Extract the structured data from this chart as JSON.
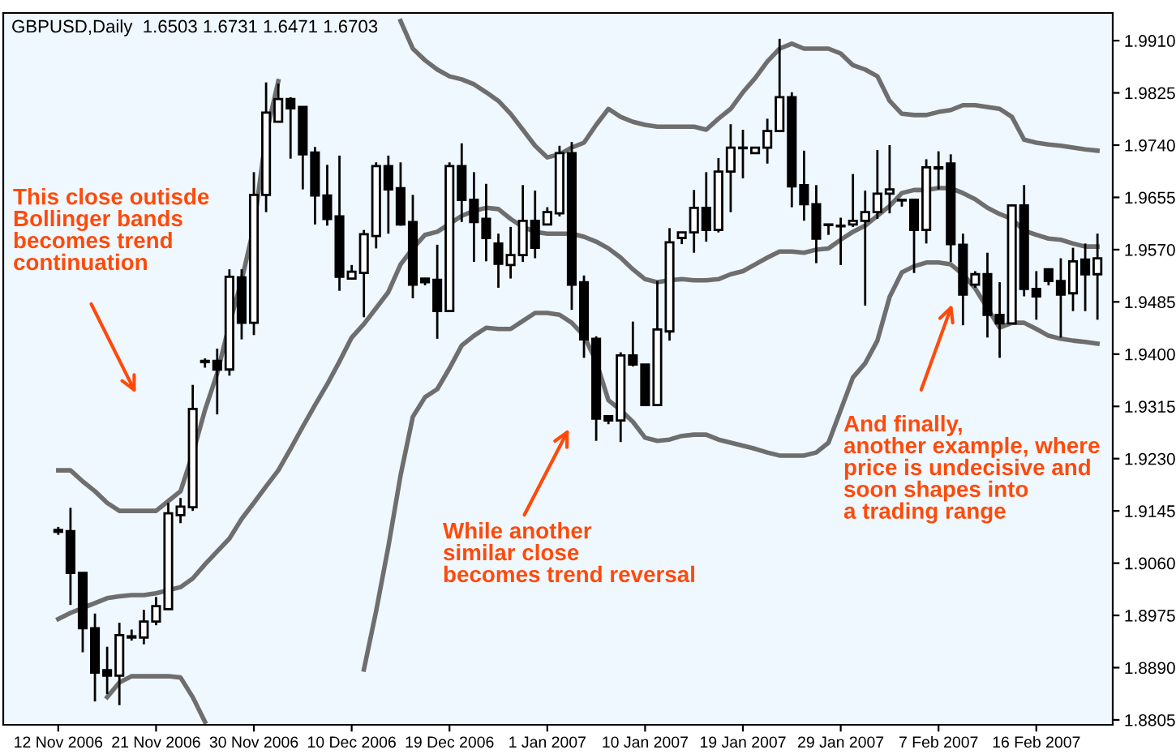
{
  "chart_data": {
    "type": "candlestick",
    "title": "GBPUSD,Daily  1.6503 1.6731 1.6471 1.6703",
    "categories": [
      "12 Nov 2006",
      null,
      null,
      null,
      null,
      null,
      null,
      null,
      "21 Nov 2006",
      null,
      null,
      null,
      null,
      null,
      null,
      null,
      "30 Nov 2006",
      null,
      null,
      null,
      null,
      null,
      null,
      null,
      "10 Dec 2006",
      null,
      null,
      null,
      null,
      null,
      null,
      null,
      "19 Dec 2006",
      null,
      null,
      null,
      null,
      null,
      null,
      null,
      "1 Jan 2007",
      null,
      null,
      null,
      null,
      null,
      null,
      null,
      "10 Jan 2007",
      null,
      null,
      null,
      null,
      null,
      null,
      null,
      "19 Jan 2007",
      null,
      null,
      null,
      null,
      null,
      null,
      null,
      "29 Jan 2007",
      null,
      null,
      null,
      null,
      null,
      null,
      null,
      "7 Feb 2007",
      null,
      null,
      null,
      null,
      null,
      null,
      null,
      "16 Feb 2007",
      null,
      null,
      null,
      null,
      null
    ],
    "ohlc": [
      [
        1.9114,
        1.9119,
        1.9106,
        1.9111
      ],
      [
        1.9112,
        1.915,
        1.8992,
        1.9044
      ],
      [
        1.9044,
        1.9045,
        1.8915,
        1.8954
      ],
      [
        1.8954,
        1.8978,
        1.8835,
        1.8882
      ],
      [
        1.8886,
        1.8924,
        1.8847,
        1.8877
      ],
      [
        1.8877,
        1.8963,
        1.8829,
        1.8943
      ],
      [
        1.8939,
        1.8952,
        1.8934,
        1.8941
      ],
      [
        1.8939,
        1.8984,
        1.8928,
        1.8965
      ],
      [
        1.8965,
        1.9005,
        1.8959,
        1.899
      ],
      [
        1.8985,
        1.9158,
        1.8985,
        1.9141
      ],
      [
        1.9138,
        1.9166,
        1.9125,
        1.9152
      ],
      [
        1.9151,
        1.935,
        1.9145,
        1.9311
      ],
      [
        1.9387,
        1.9393,
        1.9378,
        1.9389
      ],
      [
        1.9389,
        1.9409,
        1.9302,
        1.9375
      ],
      [
        1.9375,
        1.9538,
        1.9365,
        1.9526
      ],
      [
        1.9525,
        1.9538,
        1.9424,
        1.9451
      ],
      [
        1.9451,
        1.9696,
        1.9431,
        1.9659
      ],
      [
        1.9659,
        1.9842,
        1.9631,
        1.9793
      ],
      [
        1.9778,
        1.984,
        1.9778,
        1.9815
      ],
      [
        1.9815,
        1.9818,
        1.9718,
        1.98
      ],
      [
        1.9802,
        1.9802,
        1.9668,
        1.9725
      ],
      [
        1.9728,
        1.9737,
        1.9611,
        1.9658
      ],
      [
        1.9658,
        1.9708,
        1.9609,
        1.962
      ],
      [
        1.9624,
        1.9723,
        1.9503,
        1.9526
      ],
      [
        1.9523,
        1.9545,
        1.9523,
        1.9534
      ],
      [
        1.9532,
        1.9602,
        1.946,
        1.9595
      ],
      [
        1.9592,
        1.9712,
        1.9572,
        1.9706
      ],
      [
        1.9706,
        1.9723,
        1.9596,
        1.9668
      ],
      [
        1.967,
        1.9712,
        1.9609,
        1.9611
      ],
      [
        1.9615,
        1.9659,
        1.9491,
        1.9513
      ],
      [
        1.9523,
        1.9523,
        1.9512,
        1.9517
      ],
      [
        1.9521,
        1.9578,
        1.9425,
        1.947
      ],
      [
        1.947,
        1.9712,
        1.947,
        1.9706
      ],
      [
        1.9706,
        1.9743,
        1.9615,
        1.9651
      ],
      [
        1.9651,
        1.9696,
        1.955,
        1.9615
      ],
      [
        1.962,
        1.9677,
        1.9551,
        1.9589
      ],
      [
        1.958,
        1.9596,
        1.9508,
        1.9547
      ],
      [
        1.9545,
        1.9607,
        1.9523,
        1.9561
      ],
      [
        1.9561,
        1.9675,
        1.955,
        1.9617
      ],
      [
        1.9617,
        1.9666,
        1.9556,
        1.9573
      ],
      [
        1.9611,
        1.9639,
        1.9611,
        1.9631
      ],
      [
        1.9629,
        1.9739,
        1.9624,
        1.9727
      ],
      [
        1.9727,
        1.9745,
        1.9472,
        1.9513
      ],
      [
        1.9517,
        1.9528,
        1.9394,
        1.9424
      ],
      [
        1.9425,
        1.9429,
        1.9259,
        1.9295
      ],
      [
        1.9299,
        1.9299,
        1.9286,
        1.9292
      ],
      [
        1.9292,
        1.9403,
        1.9257,
        1.9398
      ],
      [
        1.9398,
        1.9453,
        1.938,
        1.9383
      ],
      [
        1.9383,
        1.9383,
        1.9317,
        1.9317
      ],
      [
        1.9317,
        1.9519,
        1.9317,
        1.944
      ],
      [
        1.9437,
        1.9605,
        1.9422,
        1.9582
      ],
      [
        1.9589,
        1.9598,
        1.9579,
        1.9598
      ],
      [
        1.9598,
        1.9667,
        1.9565,
        1.9638
      ],
      [
        1.9638,
        1.9696,
        1.9583,
        1.9602
      ],
      [
        1.9602,
        1.9719,
        1.9598,
        1.9697
      ],
      [
        1.9697,
        1.9774,
        1.9631,
        1.9736
      ],
      [
        1.9736,
        1.9765,
        1.9686,
        1.9735
      ],
      [
        1.9727,
        1.9736,
        1.9727,
        1.9736
      ],
      [
        1.9736,
        1.9783,
        1.971,
        1.9763
      ],
      [
        1.9763,
        1.9913,
        1.9763,
        1.9818
      ],
      [
        1.9818,
        1.9826,
        1.9639,
        1.9673
      ],
      [
        1.9675,
        1.9731,
        1.9617,
        1.9644
      ],
      [
        1.9644,
        1.9675,
        1.9548,
        1.9588
      ],
      [
        1.961,
        1.9612,
        1.9594,
        1.9611
      ],
      [
        1.9608,
        1.9622,
        1.9545,
        1.9609
      ],
      [
        1.9611,
        1.9693,
        1.9607,
        1.9617
      ],
      [
        1.9617,
        1.9666,
        1.9479,
        1.9631
      ],
      [
        1.9631,
        1.9732,
        1.962,
        1.9661
      ],
      [
        1.9661,
        1.974,
        1.9629,
        1.9668
      ],
      [
        1.965,
        1.9652,
        1.964,
        1.9651
      ],
      [
        1.9651,
        1.9651,
        1.9532,
        1.9602
      ],
      [
        1.9602,
        1.9717,
        1.958,
        1.9704
      ],
      [
        1.9702,
        1.973,
        1.9668,
        1.9704
      ],
      [
        1.971,
        1.9725,
        1.955,
        1.9579
      ],
      [
        1.9578,
        1.9596,
        1.9447,
        1.9497
      ],
      [
        1.9513,
        1.9535,
        1.9508,
        1.953
      ],
      [
        1.953,
        1.9565,
        1.9427,
        1.9464
      ],
      [
        1.9464,
        1.9517,
        1.9394,
        1.945
      ],
      [
        1.945,
        1.9642,
        1.945,
        1.9642
      ],
      [
        1.9642,
        1.9675,
        1.9494,
        1.9506
      ],
      [
        1.9506,
        1.9535,
        1.9456,
        1.9494
      ],
      [
        1.9538,
        1.9538,
        1.9512,
        1.9519
      ],
      [
        1.9519,
        1.9556,
        1.9427,
        1.9497
      ],
      [
        1.9499,
        1.9573,
        1.947,
        1.9551
      ],
      [
        1.9554,
        1.958,
        1.947,
        1.953
      ],
      [
        1.953,
        1.9596,
        1.9456,
        1.9556
      ]
    ],
    "series": [
      {
        "type": "line",
        "color": "#6e6e6e",
        "values": [
          1.9211,
          1.9211,
          1.9193,
          1.9177,
          1.9158,
          1.9145,
          1.9145,
          1.9145,
          1.9145,
          1.9161,
          1.9177,
          1.9238,
          1.9309,
          1.9369,
          1.9449,
          1.952,
          1.9607,
          1.9757,
          1.9844,
          null,
          null,
          null,
          null,
          null,
          null,
          null,
          null,
          null,
          1.9942,
          1.9897,
          1.9878,
          1.9863,
          1.9852,
          1.9847,
          1.9839,
          1.9826,
          1.9812,
          1.9791,
          1.9765,
          1.9739,
          1.972,
          1.9725,
          1.9736,
          1.9744,
          1.9773,
          1.9799,
          1.9786,
          1.9778,
          1.9773,
          1.977,
          1.977,
          1.977,
          1.977,
          1.9765,
          1.9783,
          1.9799,
          1.9826,
          1.9849,
          1.9876,
          1.9897,
          1.9905,
          1.9897,
          1.9897,
          1.9897,
          1.9889,
          1.987,
          1.9863,
          1.9852,
          1.9812,
          1.9791,
          1.9789,
          1.9789,
          1.9794,
          1.9797,
          1.9805,
          1.9805,
          1.9802,
          1.9799,
          1.9786,
          1.9749,
          1.9744,
          1.9741,
          1.9739,
          1.9736,
          1.9733,
          1.9731
        ]
      },
      {
        "type": "line",
        "color": "#6e6e6e",
        "values": [
          1.8969,
          1.8979,
          1.8987,
          1.8995,
          1.9003,
          1.9006,
          1.9008,
          1.9008,
          1.9011,
          1.9016,
          1.9021,
          1.9035,
          1.9058,
          1.9079,
          1.91,
          1.9132,
          1.9158,
          1.9185,
          1.9211,
          1.9246,
          1.9282,
          1.9317,
          1.9351,
          1.9388,
          1.9427,
          1.9449,
          1.9475,
          1.9501,
          1.9546,
          1.9572,
          1.9594,
          1.9599,
          1.9612,
          1.9625,
          1.9633,
          1.9638,
          1.9636,
          1.962,
          1.9607,
          1.9599,
          1.9596,
          1.9596,
          1.9596,
          1.9591,
          1.9583,
          1.9572,
          1.9557,
          1.9538,
          1.9522,
          1.9517,
          1.952,
          1.9522,
          1.952,
          1.952,
          1.9522,
          1.953,
          1.9535,
          1.9546,
          1.9557,
          1.9567,
          1.9567,
          1.9565,
          1.957,
          1.9572,
          1.9586,
          1.9599,
          1.9609,
          1.9625,
          1.9641,
          1.9662,
          1.9667,
          1.9667,
          1.967,
          1.967,
          1.9662,
          1.9652,
          1.9638,
          1.9628,
          1.962,
          1.9601,
          1.9594,
          1.9588,
          1.9586,
          1.958,
          1.9575,
          1.9575
        ]
      },
      {
        "type": "line",
        "color": "#6e6e6e",
        "values": [
          null,
          null,
          null,
          null,
          1.8842,
          1.8866,
          1.8876,
          1.8876,
          1.8876,
          1.8876,
          1.8874,
          1.8842,
          1.8802,
          null,
          null,
          null,
          null,
          null,
          null,
          null,
          null,
          null,
          null,
          null,
          null,
          1.8887,
          1.8982,
          1.9087,
          1.9203,
          1.9298,
          1.933,
          1.9343,
          1.9377,
          1.9414,
          1.943,
          1.9443,
          1.9441,
          1.9441,
          1.9454,
          1.9467,
          1.9467,
          1.9464,
          1.9451,
          1.943,
          1.9388,
          1.9325,
          1.9309,
          1.929,
          1.9264,
          1.9259,
          1.9261,
          1.9267,
          1.9269,
          1.9269,
          1.9261,
          1.9256,
          1.9251,
          1.9246,
          1.924,
          1.9235,
          1.9235,
          1.9235,
          1.924,
          1.9256,
          1.9309,
          1.9362,
          1.9385,
          1.9422,
          1.9493,
          1.9533,
          1.9543,
          1.9549,
          1.9549,
          1.9546,
          1.953,
          1.9507,
          1.9475,
          1.9443,
          1.9451,
          1.9451,
          1.9441,
          1.943,
          1.9425,
          1.9422,
          1.942,
          1.9417
        ]
      }
    ],
    "ylim": [
      1.8797,
      1.9955
    ],
    "yticks": [
      1.8805,
      {
        "value": 1.889,
        "label": "1.8890"
      },
      1.8975,
      {
        "value": 1.906,
        "label": "1.9060"
      },
      1.9145,
      {
        "value": 1.923,
        "label": "1.9230"
      },
      1.9315,
      {
        "value": 1.94,
        "label": "1.9400"
      },
      1.9485,
      {
        "value": 1.957,
        "label": "1.9570"
      },
      1.9655,
      {
        "value": 1.974,
        "label": "1.9740"
      },
      1.9825,
      {
        "value": 1.991,
        "label": "1.9910"
      }
    ],
    "annotations": [
      "This close outisde\nBollinger bands\nbecomes trend\ncontinuation",
      "While another\nsimilar close\nbecomes trend reversal",
      "And finally,\nanother example, where\nprice is undecisive and\nsoon shapes into\na trading range"
    ],
    "grid": false
  }
}
